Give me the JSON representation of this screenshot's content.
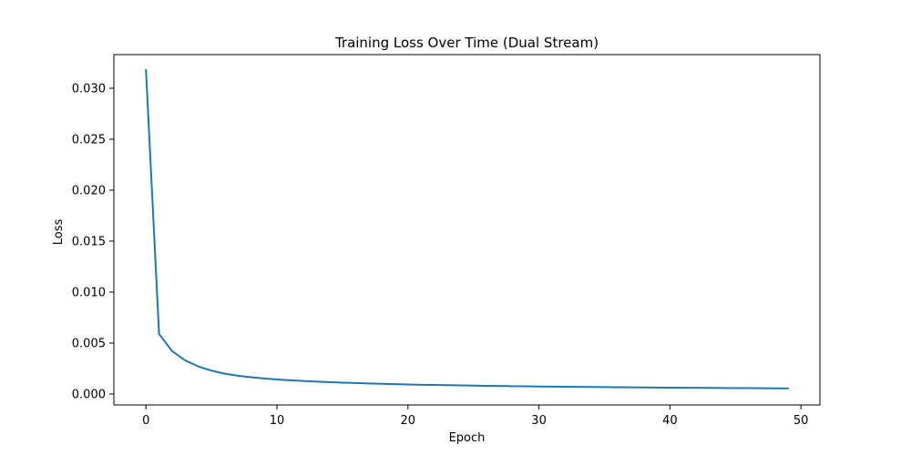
{
  "chart_data": {
    "type": "line",
    "title": "Training Loss Over Time (Dual Stream)",
    "xlabel": "Epoch",
    "ylabel": "Loss",
    "xlim": [
      -2.45,
      51.45
    ],
    "ylim": [
      -0.00107,
      0.0333
    ],
    "xticks": [
      0,
      10,
      20,
      30,
      40,
      50
    ],
    "xtick_labels": [
      "0",
      "10",
      "20",
      "30",
      "40",
      "50"
    ],
    "yticks": [
      0.0,
      0.005,
      0.01,
      0.015,
      0.02,
      0.025,
      0.03
    ],
    "ytick_labels": [
      "0.000",
      "0.005",
      "0.010",
      "0.015",
      "0.020",
      "0.025",
      "0.030"
    ],
    "grid": false,
    "series": [
      {
        "color": "#1f77b4",
        "x": [
          0,
          1,
          2,
          3,
          4,
          5,
          6,
          7,
          8,
          9,
          10,
          11,
          12,
          13,
          14,
          15,
          16,
          17,
          18,
          19,
          20,
          21,
          22,
          23,
          24,
          25,
          26,
          27,
          28,
          29,
          30,
          31,
          32,
          33,
          34,
          35,
          36,
          37,
          38,
          39,
          40,
          41,
          42,
          43,
          44,
          45,
          46,
          47,
          48,
          49
        ],
        "y": [
          0.0318,
          0.0059,
          0.0042,
          0.0033,
          0.0027,
          0.0023,
          0.002,
          0.0018,
          0.00165,
          0.00153,
          0.00143,
          0.00135,
          0.00128,
          0.00122,
          0.00117,
          0.00112,
          0.00108,
          0.00104,
          0.001,
          0.00097,
          0.00094,
          0.00091,
          0.00089,
          0.00087,
          0.00085,
          0.00083,
          0.00081,
          0.00079,
          0.00077,
          0.00076,
          0.00074,
          0.00073,
          0.00072,
          0.0007,
          0.00069,
          0.00068,
          0.00067,
          0.00066,
          0.00065,
          0.00064,
          0.00063,
          0.00062,
          0.00061,
          0.0006,
          0.00059,
          0.00058,
          0.00058,
          0.00057,
          0.00056,
          0.00055
        ]
      }
    ]
  }
}
